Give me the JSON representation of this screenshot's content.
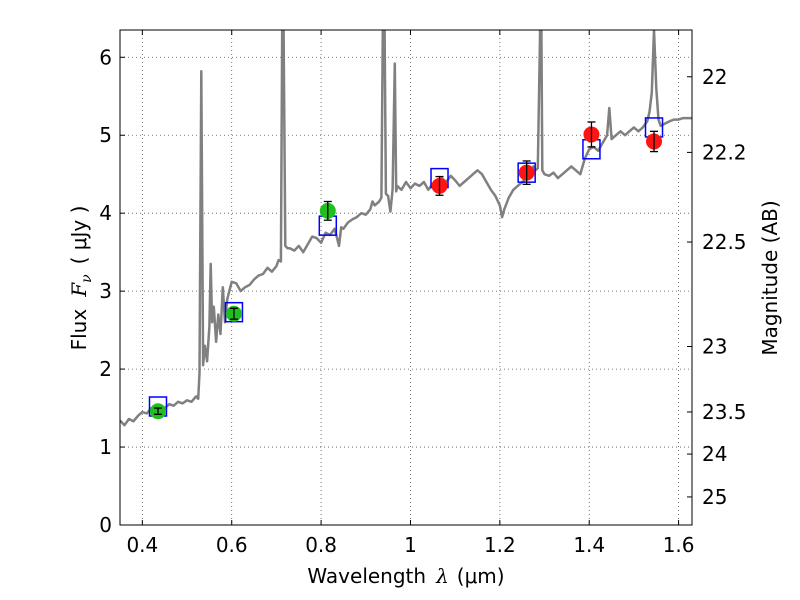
{
  "chart_data": {
    "type": "scatter",
    "xlabel_prefix": "Wavelength",
    "xlabel_symbol": "λ",
    "xlabel_unit": "(μm)",
    "ylabel_prefix": "Flux",
    "ylabel_symbol": "F",
    "ylabel_subscript": "ν",
    "ylabel_unit": "( μJy )",
    "y2label": "Magnitude (AB)",
    "xlim": [
      0.35,
      1.63
    ],
    "ylim": [
      0,
      6.35
    ],
    "grid": true,
    "x_ticks": [
      0.4,
      0.6,
      0.8,
      1.0,
      1.2,
      1.4,
      1.6
    ],
    "x_tick_labels": [
      "0.4",
      "0.6",
      "0.8",
      "1",
      "1.2",
      "1.4",
      "1.6"
    ],
    "y_ticks": [
      0,
      1,
      2,
      3,
      4,
      5,
      6
    ],
    "y_tick_labels": [
      "0",
      "1",
      "2",
      "3",
      "4",
      "5",
      "6"
    ],
    "mag_ticks": [
      {
        "label": "22",
        "flux": 5.75
      },
      {
        "label": "22.2",
        "flux": 4.78
      },
      {
        "label": "22.5",
        "flux": 3.63
      },
      {
        "label": "23",
        "flux": 2.29
      },
      {
        "label": "23.5",
        "flux": 1.45
      },
      {
        "label": "24",
        "flux": 0.91
      },
      {
        "label": "25",
        "flux": 0.36
      }
    ],
    "colors": {
      "spectrum": "#808080",
      "model_box": "#0000ff",
      "green_points": "#1fbf1f",
      "red_points": "#ff1414",
      "grid": "#555555"
    },
    "series": [
      {
        "name": "Model spectrum",
        "kind": "line",
        "points": [
          [
            0.35,
            1.34
          ],
          [
            0.36,
            1.28
          ],
          [
            0.37,
            1.36
          ],
          [
            0.38,
            1.33
          ],
          [
            0.39,
            1.4
          ],
          [
            0.4,
            1.45
          ],
          [
            0.41,
            1.43
          ],
          [
            0.42,
            1.5
          ],
          [
            0.43,
            1.48
          ],
          [
            0.44,
            1.54
          ],
          [
            0.45,
            1.5
          ],
          [
            0.46,
            1.55
          ],
          [
            0.47,
            1.53
          ],
          [
            0.48,
            1.58
          ],
          [
            0.49,
            1.56
          ],
          [
            0.5,
            1.6
          ],
          [
            0.51,
            1.58
          ],
          [
            0.52,
            1.65
          ],
          [
            0.525,
            1.62
          ],
          [
            0.528,
            1.95
          ],
          [
            0.532,
            5.82
          ],
          [
            0.536,
            2.05
          ],
          [
            0.54,
            2.3
          ],
          [
            0.545,
            2.1
          ],
          [
            0.55,
            2.55
          ],
          [
            0.553,
            3.35
          ],
          [
            0.556,
            2.6
          ],
          [
            0.56,
            2.8
          ],
          [
            0.565,
            2.35
          ],
          [
            0.57,
            2.7
          ],
          [
            0.575,
            2.45
          ],
          [
            0.58,
            3.05
          ],
          [
            0.585,
            2.6
          ],
          [
            0.59,
            2.9
          ],
          [
            0.6,
            3.12
          ],
          [
            0.61,
            3.1
          ],
          [
            0.62,
            3.0
          ],
          [
            0.63,
            3.05
          ],
          [
            0.64,
            3.08
          ],
          [
            0.65,
            3.15
          ],
          [
            0.66,
            3.2
          ],
          [
            0.67,
            3.22
          ],
          [
            0.68,
            3.3
          ],
          [
            0.69,
            3.25
          ],
          [
            0.7,
            3.32
          ],
          [
            0.705,
            3.4
          ],
          [
            0.71,
            3.38
          ],
          [
            0.713,
            6.35
          ],
          [
            0.716,
            6.35
          ],
          [
            0.72,
            3.58
          ],
          [
            0.725,
            3.55
          ],
          [
            0.73,
            3.55
          ],
          [
            0.74,
            3.52
          ],
          [
            0.75,
            3.58
          ],
          [
            0.76,
            3.5
          ],
          [
            0.77,
            3.6
          ],
          [
            0.78,
            3.7
          ],
          [
            0.79,
            3.68
          ],
          [
            0.8,
            3.62
          ],
          [
            0.81,
            3.75
          ],
          [
            0.82,
            3.72
          ],
          [
            0.83,
            3.8
          ],
          [
            0.835,
            3.7
          ],
          [
            0.84,
            3.58
          ],
          [
            0.845,
            3.82
          ],
          [
            0.85,
            3.8
          ],
          [
            0.86,
            3.88
          ],
          [
            0.87,
            3.92
          ],
          [
            0.88,
            3.95
          ],
          [
            0.89,
            4.0
          ],
          [
            0.9,
            3.98
          ],
          [
            0.91,
            4.05
          ],
          [
            0.915,
            4.15
          ],
          [
            0.92,
            4.1
          ],
          [
            0.93,
            4.15
          ],
          [
            0.935,
            4.2
          ],
          [
            0.938,
            6.35
          ],
          [
            0.942,
            6.35
          ],
          [
            0.945,
            4.25
          ],
          [
            0.95,
            4.22
          ],
          [
            0.955,
            4.02
          ],
          [
            0.96,
            4.3
          ],
          [
            0.965,
            5.92
          ],
          [
            0.968,
            4.28
          ],
          [
            0.97,
            4.35
          ],
          [
            0.98,
            4.3
          ],
          [
            0.99,
            4.4
          ],
          [
            1.0,
            4.32
          ],
          [
            1.01,
            4.38
          ],
          [
            1.02,
            4.35
          ],
          [
            1.03,
            4.4
          ],
          [
            1.04,
            4.3
          ],
          [
            1.05,
            4.38
          ],
          [
            1.06,
            4.42
          ],
          [
            1.07,
            4.45
          ],
          [
            1.08,
            4.4
          ],
          [
            1.09,
            4.48
          ],
          [
            1.1,
            4.42
          ],
          [
            1.11,
            4.35
          ],
          [
            1.12,
            4.4
          ],
          [
            1.13,
            4.45
          ],
          [
            1.14,
            4.5
          ],
          [
            1.15,
            4.55
          ],
          [
            1.16,
            4.5
          ],
          [
            1.17,
            4.4
          ],
          [
            1.18,
            4.3
          ],
          [
            1.19,
            4.22
          ],
          [
            1.2,
            4.1
          ],
          [
            1.205,
            3.95
          ],
          [
            1.21,
            4.05
          ],
          [
            1.22,
            4.2
          ],
          [
            1.23,
            4.3
          ],
          [
            1.24,
            4.35
          ],
          [
            1.25,
            4.4
          ],
          [
            1.26,
            4.45
          ],
          [
            1.27,
            4.5
          ],
          [
            1.275,
            4.6
          ],
          [
            1.28,
            4.55
          ],
          [
            1.285,
            4.58
          ],
          [
            1.29,
            6.35
          ],
          [
            1.293,
            6.35
          ],
          [
            1.295,
            4.55
          ],
          [
            1.3,
            4.5
          ],
          [
            1.31,
            4.48
          ],
          [
            1.32,
            4.52
          ],
          [
            1.33,
            4.45
          ],
          [
            1.34,
            4.5
          ],
          [
            1.35,
            4.55
          ],
          [
            1.36,
            4.6
          ],
          [
            1.37,
            4.55
          ],
          [
            1.38,
            4.5
          ],
          [
            1.39,
            4.7
          ],
          [
            1.4,
            4.82
          ],
          [
            1.41,
            4.85
          ],
          [
            1.42,
            4.8
          ],
          [
            1.43,
            4.9
          ],
          [
            1.44,
            5.0
          ],
          [
            1.445,
            5.35
          ],
          [
            1.45,
            4.95
          ],
          [
            1.46,
            5.0
          ],
          [
            1.47,
            5.05
          ],
          [
            1.48,
            5.0
          ],
          [
            1.49,
            5.05
          ],
          [
            1.5,
            5.1
          ],
          [
            1.51,
            5.05
          ],
          [
            1.52,
            5.1
          ],
          [
            1.53,
            5.18
          ],
          [
            1.535,
            5.3
          ],
          [
            1.54,
            5.55
          ],
          [
            1.545,
            6.35
          ],
          [
            1.55,
            5.6
          ],
          [
            1.555,
            5.2
          ],
          [
            1.56,
            5.12
          ],
          [
            1.57,
            5.15
          ],
          [
            1.58,
            5.18
          ],
          [
            1.59,
            5.2
          ],
          [
            1.6,
            5.2
          ],
          [
            1.61,
            5.22
          ],
          [
            1.62,
            5.22
          ],
          [
            1.63,
            5.22
          ]
        ]
      },
      {
        "name": "Model broadband flux",
        "kind": "box",
        "points": [
          [
            0.435,
            1.52
          ],
          [
            0.605,
            2.73
          ],
          [
            0.815,
            3.84
          ],
          [
            1.065,
            4.45
          ],
          [
            1.26,
            4.52
          ],
          [
            1.405,
            4.82
          ],
          [
            1.545,
            5.1
          ]
        ]
      },
      {
        "name": "Observed (green)",
        "kind": "marker",
        "points": [
          {
            "x": 0.435,
            "y": 1.46,
            "err": 0.04
          },
          {
            "x": 0.605,
            "y": 2.71,
            "err": 0.07
          },
          {
            "x": 0.815,
            "y": 4.03,
            "err": 0.12
          }
        ]
      },
      {
        "name": "Observed (red)",
        "kind": "marker",
        "points": [
          {
            "x": 1.065,
            "y": 4.35,
            "err": 0.12
          },
          {
            "x": 1.26,
            "y": 4.52,
            "err": 0.15
          },
          {
            "x": 1.405,
            "y": 5.01,
            "err": 0.16
          },
          {
            "x": 1.545,
            "y": 4.92,
            "err": 0.13
          }
        ]
      }
    ]
  }
}
